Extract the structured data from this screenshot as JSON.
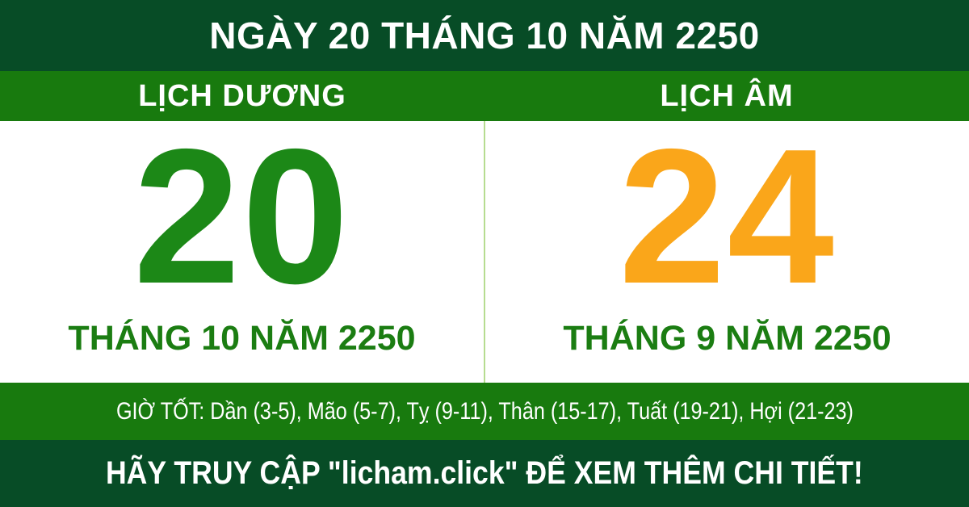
{
  "header": {
    "title": "NGÀY 20 THÁNG 10 NĂM 2250"
  },
  "solar": {
    "header": "LỊCH DƯƠNG",
    "day": "20",
    "month_year": "THÁNG 10 NĂM 2250",
    "day_color": "#1C8817"
  },
  "lunar": {
    "header": "LỊCH ÂM",
    "day": "24",
    "month_year": "THÁNG 9 NĂM 2250",
    "day_color": "#FAA61A"
  },
  "good_hours": {
    "text": "GIỜ TỐT: Dần (3-5), Mão (5-7), Tỵ (9-11), Thân (15-17), Tuất (19-21), Hợi (21-23)"
  },
  "footer": {
    "text": "HÃY TRUY CẬP \"licham.click\" ĐỂ XEM THÊM CHI TIẾT!"
  },
  "colors": {
    "dark_green": "#074C26",
    "green": "#187A0E",
    "month_green": "#1B7D12",
    "divider_green": "#B6DC90",
    "text_white": "#FFFFFF"
  }
}
